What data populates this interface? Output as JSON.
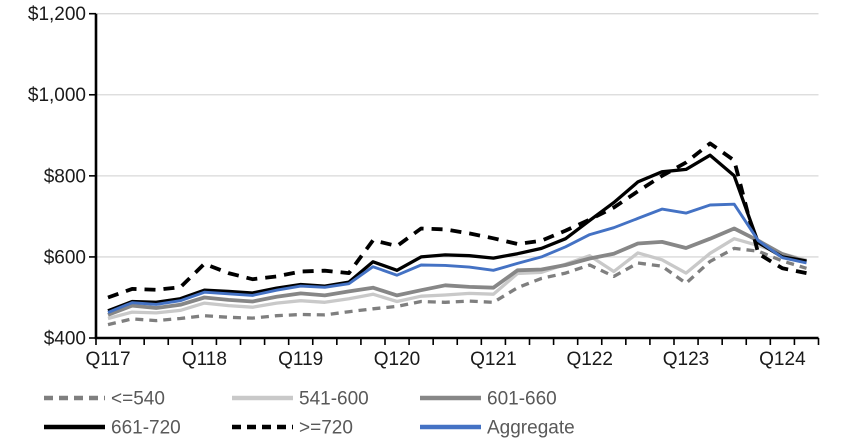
{
  "chart_data": {
    "type": "line",
    "title": "",
    "xlabel": "",
    "ylabel": "",
    "grid": "horizontal",
    "legend_position": "bottom",
    "ylim": [
      400,
      1200
    ],
    "y_tick_values": [
      400,
      600,
      800,
      1000,
      1200
    ],
    "y_ticks": [
      "$400",
      "$600",
      "$800",
      "$1,000",
      "$1,200"
    ],
    "x_tick_labels": [
      "Q117",
      "Q118",
      "Q119",
      "Q120",
      "Q121",
      "Q122",
      "Q123",
      "Q124"
    ],
    "x_label_indices": [
      0,
      4,
      8,
      12,
      16,
      20,
      24,
      28
    ],
    "categories": [
      "Q117",
      "Q217",
      "Q317",
      "Q417",
      "Q118",
      "Q218",
      "Q318",
      "Q418",
      "Q119",
      "Q219",
      "Q319",
      "Q419",
      "Q120",
      "Q220",
      "Q320",
      "Q420",
      "Q121",
      "Q221",
      "Q321",
      "Q421",
      "Q122",
      "Q222",
      "Q322",
      "Q422",
      "Q123",
      "Q223",
      "Q323",
      "Q423",
      "Q124",
      "Q224"
    ],
    "series": [
      {
        "name": "<=540",
        "color": "#7F7F7F",
        "style": "dashed",
        "values": [
          433,
          447,
          443,
          448,
          455,
          451,
          449,
          455,
          458,
          457,
          465,
          472,
          478,
          490,
          488,
          491,
          488,
          524,
          547,
          560,
          580,
          552,
          585,
          577,
          535,
          589,
          621,
          614,
          590,
          572
        ]
      },
      {
        "name": "541-600",
        "color": "#C9C9C9",
        "style": "solid",
        "values": [
          448,
          464,
          462,
          468,
          486,
          480,
          476,
          486,
          492,
          488,
          497,
          508,
          490,
          503,
          506,
          510,
          508,
          559,
          562,
          582,
          603,
          564,
          610,
          593,
          560,
          609,
          645,
          628,
          608,
          592
        ]
      },
      {
        "name": "601-660",
        "color": "#878787",
        "style": "solid",
        "values": [
          457,
          480,
          474,
          482,
          500,
          494,
          490,
          502,
          510,
          505,
          515,
          524,
          505,
          518,
          530,
          526,
          524,
          567,
          569,
          580,
          596,
          608,
          633,
          637,
          622,
          645,
          670,
          640,
          607,
          588
        ]
      },
      {
        "name": "661-720",
        "color": "#000000",
        "style": "solid",
        "values": [
          467,
          490,
          488,
          497,
          518,
          515,
          511,
          523,
          532,
          528,
          538,
          588,
          567,
          600,
          605,
          603,
          597,
          608,
          621,
          645,
          690,
          734,
          785,
          810,
          816,
          851,
          800,
          635,
          600,
          590
        ]
      },
      {
        "name": ">=720",
        "color": "#000000",
        "style": "dashed",
        "values": [
          500,
          521,
          519,
          525,
          583,
          560,
          545,
          552,
          564,
          566,
          560,
          641,
          627,
          670,
          668,
          658,
          646,
          632,
          640,
          665,
          692,
          722,
          762,
          800,
          833,
          880,
          838,
          608,
          572,
          560
        ]
      },
      {
        "name": "Aggregate",
        "color": "#4472C4",
        "style": "solid",
        "values": [
          463,
          487,
          483,
          492,
          513,
          509,
          505,
          518,
          528,
          525,
          534,
          576,
          555,
          580,
          579,
          575,
          567,
          584,
          600,
          625,
          655,
          672,
          695,
          718,
          708,
          728,
          730,
          640,
          598,
          585
        ]
      }
    ],
    "colors": {
      "gridline": "#D9D9D9",
      "axis": "#000000",
      "tick_label": "#1a1a1a",
      "legend_text": "#595959",
      "accent_blue": "#4472C4"
    }
  }
}
